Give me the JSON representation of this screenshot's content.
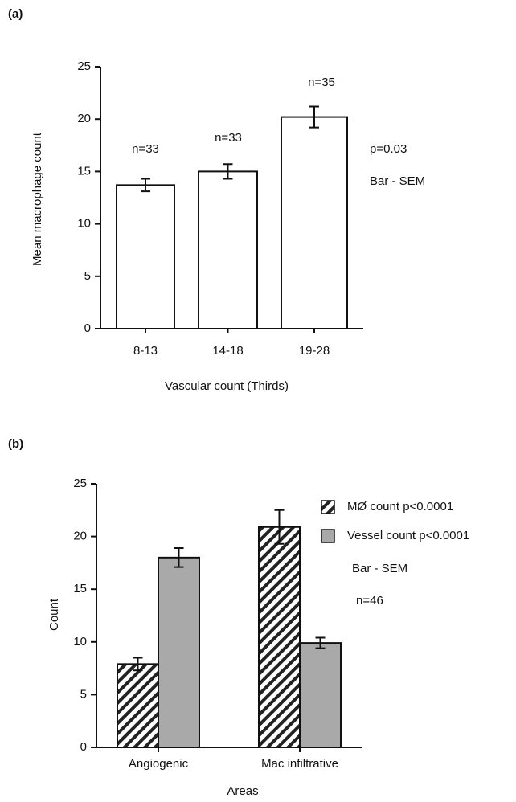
{
  "chart_data": [
    {
      "type": "bar",
      "panel": "(a)",
      "y_label": "Mean macrophage count",
      "x_label": "Vascular count (Thirds)",
      "categories": [
        "8-13",
        "14-18",
        "19-28"
      ],
      "series": [
        {
          "name": null,
          "color": "#ffffff",
          "values": [
            13.7,
            15.0,
            20.2
          ],
          "errors": [
            0.6,
            0.7,
            1.0
          ]
        }
      ],
      "ylim": [
        0,
        25
      ],
      "yticks": [
        0,
        5,
        10,
        15,
        20,
        25
      ],
      "annotations": [
        "n=33",
        "n=33",
        "n=35",
        "p=0.03",
        "Bar - SEM"
      ]
    },
    {
      "type": "bar",
      "panel": "(b)",
      "y_label": "Count",
      "x_label": "Areas",
      "categories": [
        "Angiogenic",
        "Mac infiltrative"
      ],
      "series": [
        {
          "name": "MØ count  p<0.0001",
          "color": "#ffffff",
          "hatch": true,
          "values": [
            7.9,
            20.9
          ],
          "errors": [
            0.6,
            1.6
          ]
        },
        {
          "name": "Vessel count  p<0.0001",
          "color": "#a9a9a9",
          "hatch": false,
          "values": [
            18.0,
            9.9
          ],
          "errors": [
            0.9,
            0.5
          ]
        }
      ],
      "ylim": [
        0,
        25
      ],
      "yticks": [
        0,
        5,
        10,
        15,
        20,
        25
      ],
      "annotations": [
        "Bar - SEM",
        "n=46"
      ]
    }
  ]
}
